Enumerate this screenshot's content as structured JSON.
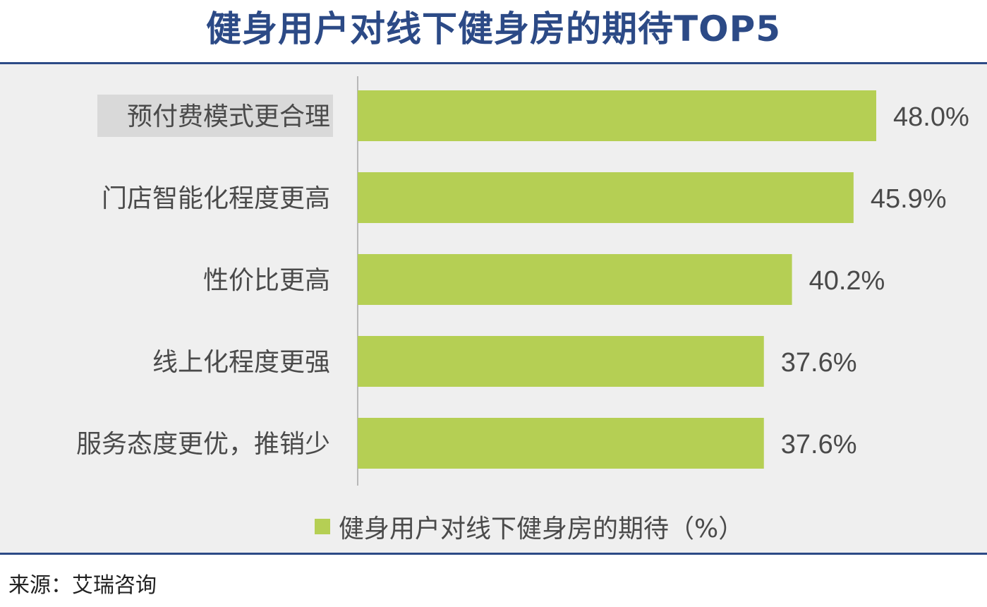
{
  "title": "健身用户对线下健身房的期待TOP5",
  "source": "来源：艾瑞咨询",
  "colors": {
    "title": "#2c4a86",
    "bar": "#b5cf54",
    "panel_background": "#efefef",
    "text": "#4a4a4a",
    "highlight": "#d9d9d9"
  },
  "chart_data": {
    "type": "bar",
    "orientation": "horizontal",
    "categories": [
      "预付费模式更合理",
      "门店智能化程度更高",
      "性价比更高",
      "线上化程度更强",
      "服务态度更优，推销少"
    ],
    "series": [
      {
        "name": "健身用户对线下健身房的期待（%）",
        "values": [
          48.0,
          45.9,
          40.2,
          37.6,
          37.6
        ]
      }
    ],
    "value_labels": [
      "48.0%",
      "45.9%",
      "40.2%",
      "37.6%",
      "37.6%"
    ],
    "xlim": [
      0,
      48.0
    ],
    "grid": false,
    "legend": "bottom",
    "highlighted_category": "预付费模式更合理"
  }
}
